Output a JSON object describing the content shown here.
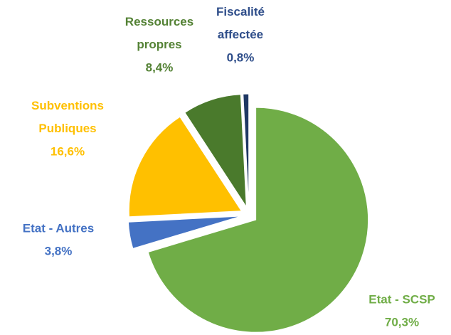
{
  "chart_data": {
    "type": "pie",
    "categories": [
      "Etat - SCSP",
      "Etat - Autres",
      "Subventions Publiques",
      "Ressources propres",
      "Fiscalité affectée"
    ],
    "values": [
      70.3,
      3.8,
      16.6,
      8.4,
      0.8
    ],
    "value_labels": [
      "70,3%",
      "3,8%",
      "16,6%",
      "8,4%",
      "0,8%"
    ],
    "colors": [
      "#70ad47",
      "#4472c4",
      "#ffc000",
      "#4a7a2c",
      "#1f3864"
    ],
    "label_colors": [
      "#70ad47",
      "#4472c4",
      "#ffc000",
      "#548235",
      "#2f4e8a"
    ]
  }
}
